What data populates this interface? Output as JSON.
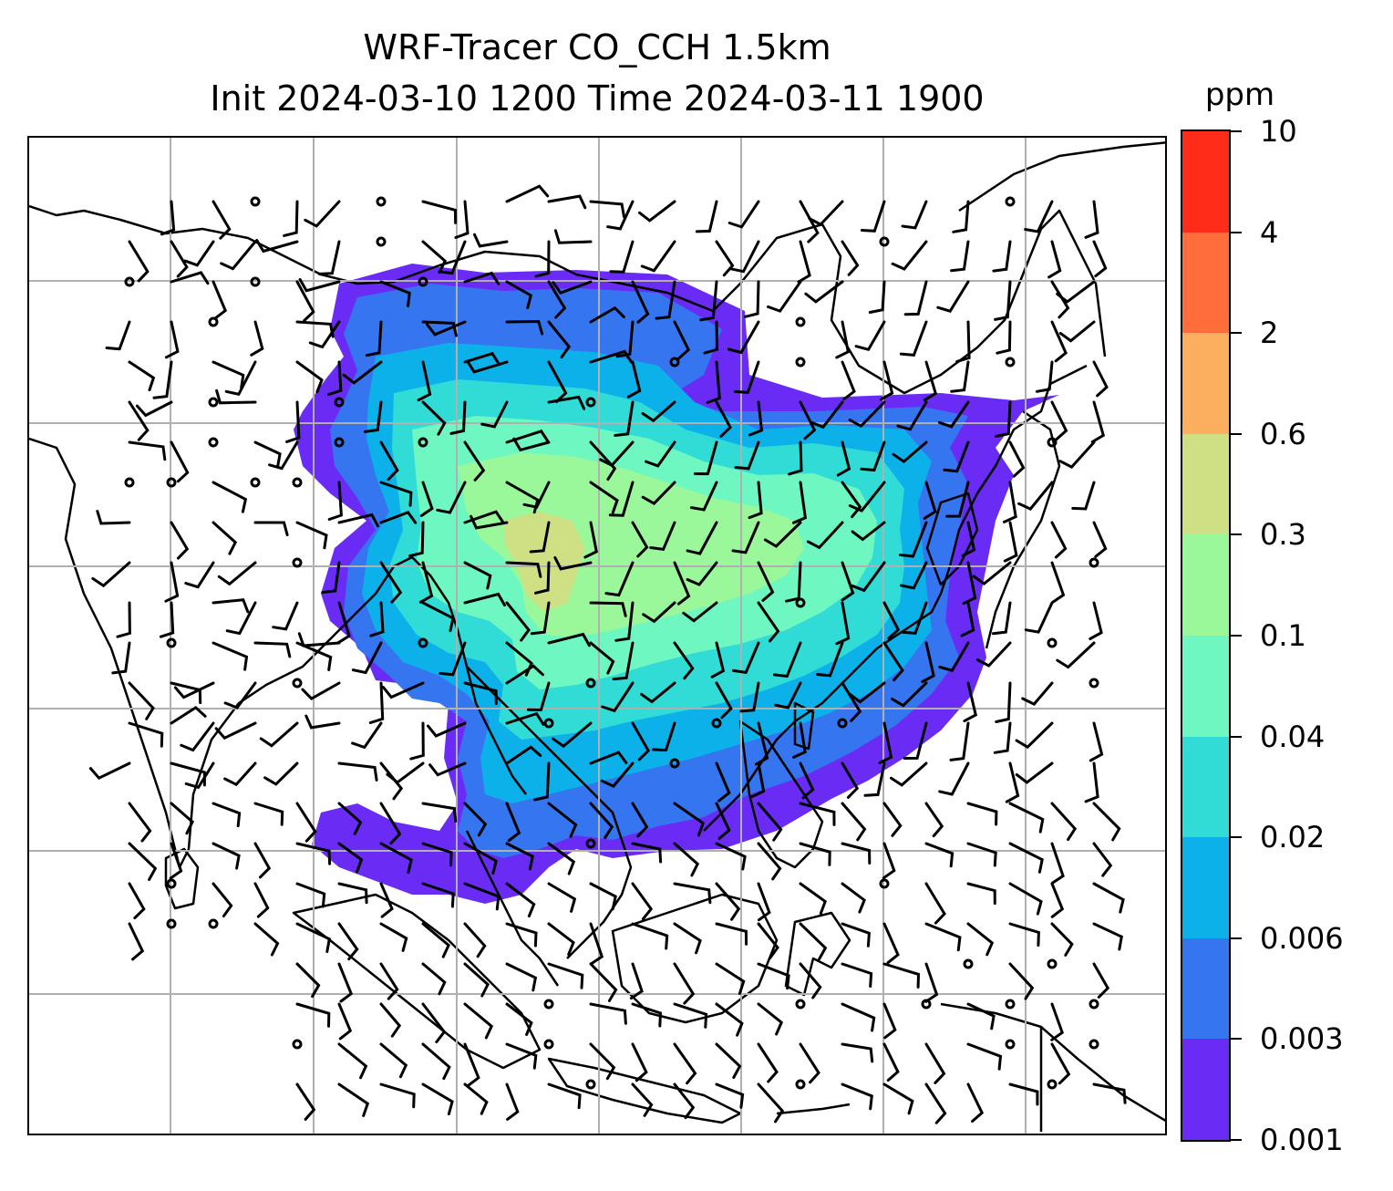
{
  "title": {
    "line1": "WRF-Tracer CO_CCH 1.5km",
    "line2": "Init 2024-03-10 1200 Time 2024-03-11 1900"
  },
  "colorbar": {
    "unit": "ppm",
    "levels": [
      "0.001",
      "0.003",
      "0.006",
      "0.02",
      "0.04",
      "0.1",
      "0.3",
      "0.6",
      "2",
      "4",
      "10"
    ],
    "colors": [
      "#6a2cf5",
      "#3575f0",
      "#0db1ea",
      "#30dcd5",
      "#6ef7c1",
      "#9af79a",
      "#cfdf84",
      "#fcaf5e",
      "#ff6e3a",
      "#ff2c19"
    ]
  },
  "map": {
    "gridlines": 7,
    "coastline_color": "#000000",
    "gridline_color": "#b0b0b0"
  }
}
